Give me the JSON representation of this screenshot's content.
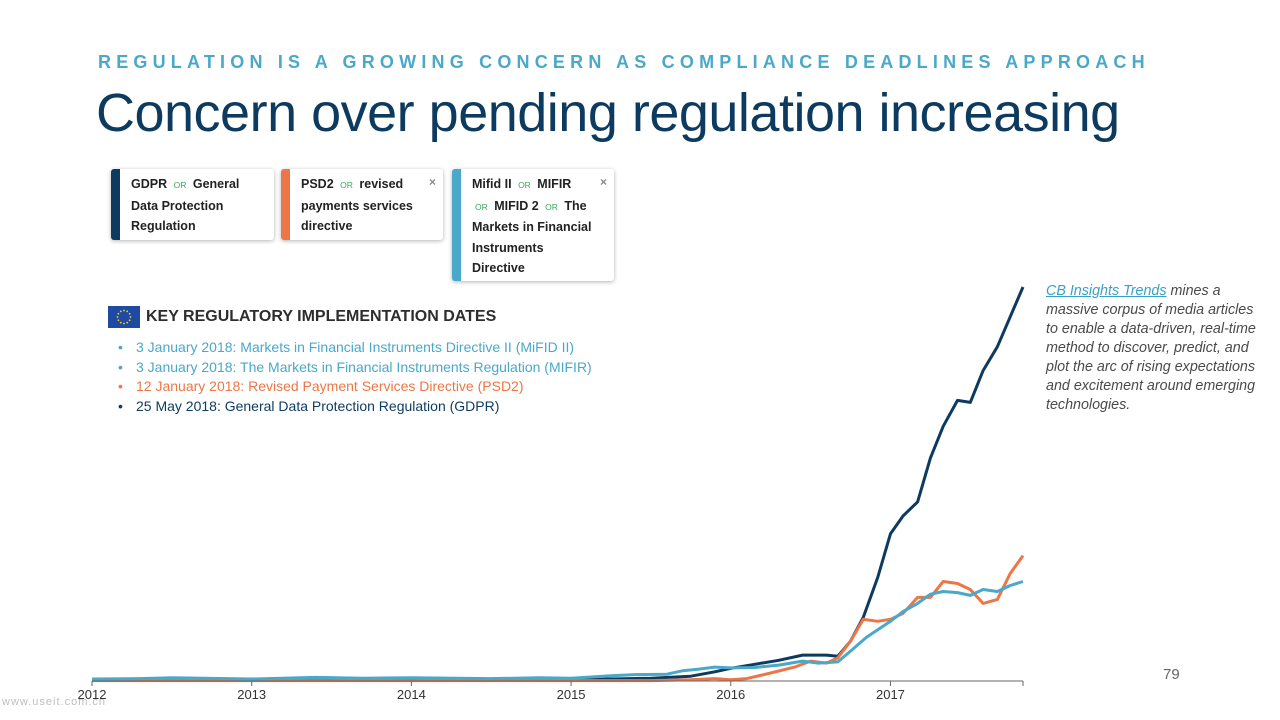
{
  "header": {
    "kicker": "REGULATION IS A GROWING CONCERN AS COMPLIANCE DEADLINES APPROACH",
    "title": "Concern over pending regulation increasing"
  },
  "query_chips": [
    {
      "color": "#0d3a5f",
      "has_close": false,
      "parts": [
        "GDPR",
        "OR",
        "General Data Protection Regulation"
      ]
    },
    {
      "color": "#ec7646",
      "has_close": true,
      "parts": [
        "PSD2",
        "OR",
        "revised payments services directive"
      ]
    },
    {
      "color": "#4aa8c9",
      "has_close": true,
      "parts": [
        "Mifid II",
        "OR",
        "MIFIR",
        "OR",
        "MIFID 2",
        "OR",
        "The Markets in Financial Instruments Directive"
      ]
    }
  ],
  "close_glyph": "×",
  "key_dates": {
    "title": "KEY REGULATORY IMPLEMENTATION DATES",
    "flag_icon": "eu-flag-icon",
    "items": [
      {
        "text": "3 January 2018: Markets in Financial Instruments Directive II (MiFID II)",
        "color": "#4aa8c9"
      },
      {
        "text": "3 January 2018: The Markets in Financial Instruments Regulation (MIFIR)",
        "color": "#4aa8c9"
      },
      {
        "text": "12 January 2018: Revised Payment Services Directive (PSD2)",
        "color": "#ec7646"
      },
      {
        "text": "25 May 2018: General Data Protection Regulation (GDPR)",
        "color": "#0d3a5f"
      }
    ]
  },
  "side_note": {
    "link_text": "CB Insights Trends",
    "text": " mines a massive corpus of media articles to enable a data-driven, real-time method to discover, predict, and plot the arc of rising expectations and excitement around emerging technologies."
  },
  "page_number": "79",
  "watermark": "www.useit.com.cn",
  "chart_data": {
    "type": "line",
    "x_tick_labels": [
      "2012",
      "2013",
      "2014",
      "2015",
      "2016",
      "2017"
    ],
    "x_range": [
      2012.0,
      2017.83
    ],
    "y_range": [
      0,
      100
    ],
    "grid": false,
    "legend": "none",
    "series": [
      {
        "color": "#0d3a5f",
        "points": [
          [
            2012.0,
            0.3
          ],
          [
            2012.5,
            0.3
          ],
          [
            2013.0,
            0.3
          ],
          [
            2013.5,
            0.3
          ],
          [
            2014.0,
            0.3
          ],
          [
            2014.5,
            0.4
          ],
          [
            2014.9,
            0.4
          ],
          [
            2015.0,
            0.3
          ],
          [
            2015.25,
            0.5
          ],
          [
            2015.5,
            0.7
          ],
          [
            2015.75,
            1.2
          ],
          [
            2015.9,
            2.3
          ],
          [
            2016.0,
            3.2
          ],
          [
            2016.15,
            4.2
          ],
          [
            2016.3,
            5.2
          ],
          [
            2016.45,
            6.5
          ],
          [
            2016.6,
            6.5
          ],
          [
            2016.67,
            6.2
          ],
          [
            2016.75,
            10.0
          ],
          [
            2016.83,
            16.0
          ],
          [
            2016.92,
            26.0
          ],
          [
            2017.0,
            37.0
          ],
          [
            2017.08,
            41.5
          ],
          [
            2017.17,
            45.0
          ],
          [
            2017.25,
            56.0
          ],
          [
            2017.33,
            64.0
          ],
          [
            2017.42,
            70.5
          ],
          [
            2017.5,
            70.0
          ],
          [
            2017.58,
            78.0
          ],
          [
            2017.67,
            84.0
          ],
          [
            2017.75,
            91.5
          ],
          [
            2017.83,
            99.0
          ]
        ]
      },
      {
        "color": "#ec7646",
        "points": [
          [
            2012.0,
            0.1
          ],
          [
            2012.5,
            0.1
          ],
          [
            2013.0,
            0.1
          ],
          [
            2013.5,
            0.1
          ],
          [
            2014.0,
            0.1
          ],
          [
            2014.5,
            0.1
          ],
          [
            2015.0,
            0.1
          ],
          [
            2015.5,
            0.1
          ],
          [
            2015.75,
            0.3
          ],
          [
            2015.9,
            0.6
          ],
          [
            2016.0,
            0.3
          ],
          [
            2016.1,
            0.6
          ],
          [
            2016.25,
            2.0
          ],
          [
            2016.4,
            3.5
          ],
          [
            2016.5,
            5.0
          ],
          [
            2016.6,
            4.5
          ],
          [
            2016.67,
            5.8
          ],
          [
            2016.75,
            10.0
          ],
          [
            2016.83,
            15.5
          ],
          [
            2016.92,
            15.0
          ],
          [
            2017.0,
            15.5
          ],
          [
            2017.08,
            17.0
          ],
          [
            2017.17,
            21.0
          ],
          [
            2017.25,
            21.0
          ],
          [
            2017.33,
            25.0
          ],
          [
            2017.42,
            24.5
          ],
          [
            2017.5,
            23.0
          ],
          [
            2017.58,
            19.5
          ],
          [
            2017.67,
            20.5
          ],
          [
            2017.75,
            27.0
          ],
          [
            2017.83,
            31.5
          ]
        ]
      },
      {
        "color": "#4aa8c9",
        "points": [
          [
            2012.0,
            0.5
          ],
          [
            2012.3,
            0.6
          ],
          [
            2012.5,
            0.8
          ],
          [
            2013.0,
            0.5
          ],
          [
            2013.4,
            0.9
          ],
          [
            2013.7,
            0.7
          ],
          [
            2014.0,
            0.8
          ],
          [
            2014.5,
            0.6
          ],
          [
            2014.8,
            0.8
          ],
          [
            2015.0,
            0.7
          ],
          [
            2015.25,
            1.3
          ],
          [
            2015.4,
            1.6
          ],
          [
            2015.6,
            1.7
          ],
          [
            2015.7,
            2.6
          ],
          [
            2015.8,
            3.0
          ],
          [
            2015.9,
            3.5
          ],
          [
            2016.0,
            3.3
          ],
          [
            2016.15,
            3.4
          ],
          [
            2016.3,
            4.0
          ],
          [
            2016.45,
            5.0
          ],
          [
            2016.55,
            4.5
          ],
          [
            2016.67,
            4.8
          ],
          [
            2016.75,
            7.5
          ],
          [
            2016.85,
            11.0
          ],
          [
            2017.0,
            15.0
          ],
          [
            2017.08,
            17.5
          ],
          [
            2017.17,
            19.5
          ],
          [
            2017.25,
            21.8
          ],
          [
            2017.33,
            22.5
          ],
          [
            2017.42,
            22.2
          ],
          [
            2017.5,
            21.5
          ],
          [
            2017.58,
            23.0
          ],
          [
            2017.67,
            22.5
          ],
          [
            2017.75,
            24.0
          ],
          [
            2017.83,
            25.0
          ]
        ]
      }
    ]
  }
}
